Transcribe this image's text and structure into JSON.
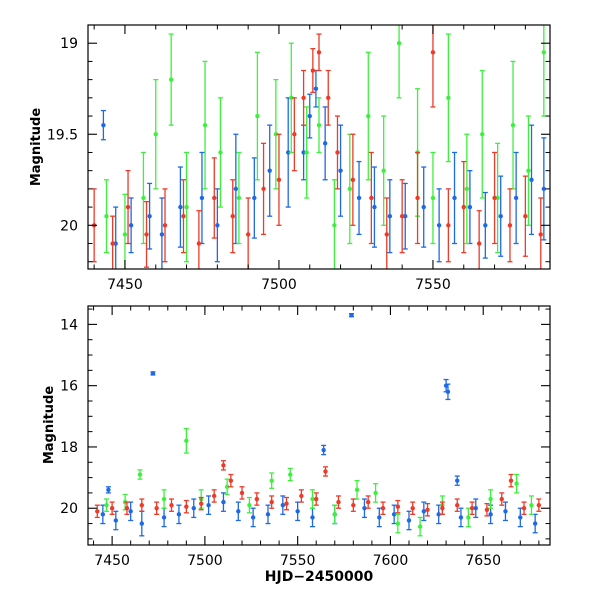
{
  "colors": {
    "blue": "#1e6ae6",
    "green": "#3ef03e",
    "red": "#ee3a28",
    "axis": "#000000"
  },
  "chart_data": [
    {
      "type": "scatter",
      "panel": "top",
      "title": "",
      "xlabel": "",
      "ylabel": "Magnitude",
      "xlim": [
        7438,
        7588
      ],
      "ylim": [
        20.24,
        18.9
      ],
      "y_inverted": true,
      "grid": false,
      "x_ticks": [
        7450,
        7500,
        7550
      ],
      "y_ticks": [
        19,
        19.5,
        20
      ],
      "x_tick_labels": [
        "7450",
        "7500",
        "7550"
      ],
      "y_tick_labels": [
        "19",
        "19.5",
        "20"
      ],
      "series": [
        {
          "color": "blue",
          "points": [
            [
              7443,
              19.45,
              0.08
            ],
            [
              7447,
              20.1,
              0.2
            ],
            [
              7452,
              20.0,
              0.15
            ],
            [
              7458,
              19.95,
              0.18
            ],
            [
              7462,
              20.05,
              0.2
            ],
            [
              7468,
              19.9,
              0.22
            ],
            [
              7475,
              19.85,
              0.25
            ],
            [
              7480,
              20.0,
              0.2
            ],
            [
              7486,
              19.8,
              0.3
            ],
            [
              7492,
              19.85,
              0.22
            ],
            [
              7497,
              19.7,
              0.25
            ],
            [
              7503,
              19.6,
              0.3
            ],
            [
              7508,
              19.6,
              0.15
            ],
            [
              7510,
              19.4,
              0.12
            ],
            [
              7512,
              19.25,
              0.1
            ],
            [
              7515,
              19.55,
              0.2
            ],
            [
              7520,
              19.7,
              0.25
            ],
            [
              7526,
              19.85,
              0.2
            ],
            [
              7531,
              19.9,
              0.22
            ],
            [
              7536,
              19.95,
              0.2
            ],
            [
              7541,
              19.95,
              0.18
            ],
            [
              7547,
              19.9,
              0.22
            ],
            [
              7552,
              20.0,
              0.2
            ],
            [
              7557,
              19.85,
              0.25
            ],
            [
              7562,
              19.9,
              0.2
            ],
            [
              7567,
              20.0,
              0.18
            ],
            [
              7572,
              19.95,
              0.22
            ],
            [
              7577,
              19.85,
              0.25
            ],
            [
              7582,
              19.75,
              0.3
            ],
            [
              7586,
              19.8,
              0.28
            ]
          ]
        },
        {
          "color": "green",
          "points": [
            [
              7444,
              19.95,
              0.2
            ],
            [
              7450,
              20.05,
              0.22
            ],
            [
              7456,
              19.85,
              0.25
            ],
            [
              7460,
              19.5,
              0.3
            ],
            [
              7465,
              19.2,
              0.25
            ],
            [
              7470,
              19.9,
              0.3
            ],
            [
              7476,
              19.45,
              0.35
            ],
            [
              7481,
              19.6,
              0.3
            ],
            [
              7487,
              19.85,
              0.25
            ],
            [
              7493,
              19.4,
              0.35
            ],
            [
              7499,
              19.5,
              0.3
            ],
            [
              7504,
              19.3,
              0.3
            ],
            [
              7509,
              19.6,
              0.25
            ],
            [
              7513,
              19.45,
              0.15
            ],
            [
              7518,
              20.0,
              0.25
            ],
            [
              7523,
              19.8,
              0.3
            ],
            [
              7529,
              19.4,
              0.35
            ],
            [
              7534,
              19.7,
              0.3
            ],
            [
              7539,
              19.0,
              0.3
            ],
            [
              7545,
              19.6,
              0.35
            ],
            [
              7550,
              19.85,
              0.25
            ],
            [
              7555,
              19.3,
              0.35
            ],
            [
              7561,
              19.8,
              0.3
            ],
            [
              7566,
              19.5,
              0.35
            ],
            [
              7571,
              19.85,
              0.3
            ],
            [
              7576,
              19.45,
              0.35
            ],
            [
              7581,
              19.7,
              0.3
            ],
            [
              7586,
              19.05,
              0.35
            ]
          ]
        },
        {
          "color": "red",
          "points": [
            [
              7440,
              20.0,
              0.2
            ],
            [
              7446,
              20.1,
              0.15
            ],
            [
              7451,
              19.9,
              0.2
            ],
            [
              7457,
              20.05,
              0.18
            ],
            [
              7463,
              20.0,
              0.2
            ],
            [
              7469,
              19.95,
              0.2
            ],
            [
              7474,
              20.1,
              0.18
            ],
            [
              7479,
              19.85,
              0.22
            ],
            [
              7485,
              19.95,
              0.2
            ],
            [
              7490,
              20.05,
              0.2
            ],
            [
              7495,
              19.8,
              0.25
            ],
            [
              7500,
              19.75,
              0.25
            ],
            [
              7505,
              19.5,
              0.2
            ],
            [
              7508,
              19.3,
              0.15
            ],
            [
              7511,
              19.15,
              0.12
            ],
            [
              7513,
              19.05,
              0.1
            ],
            [
              7516,
              19.3,
              0.15
            ],
            [
              7519,
              19.6,
              0.2
            ],
            [
              7524,
              19.75,
              0.25
            ],
            [
              7530,
              19.85,
              0.25
            ],
            [
              7535,
              20.05,
              0.2
            ],
            [
              7540,
              19.95,
              0.2
            ],
            [
              7545,
              19.85,
              0.25
            ],
            [
              7550,
              19.05,
              0.3
            ],
            [
              7555,
              20.0,
              0.2
            ],
            [
              7560,
              19.9,
              0.25
            ],
            [
              7565,
              20.1,
              0.18
            ],
            [
              7570,
              19.85,
              0.25
            ],
            [
              7575,
              20.0,
              0.2
            ],
            [
              7580,
              19.95,
              0.22
            ],
            [
              7585,
              20.05,
              0.2
            ]
          ]
        }
      ]
    },
    {
      "type": "scatter",
      "panel": "bottom",
      "title": "",
      "xlabel": "HJD−2450000",
      "ylabel": "Magnitude",
      "xlim": [
        7437,
        7686
      ],
      "ylim": [
        21.2,
        13.4
      ],
      "y_inverted": true,
      "grid": false,
      "x_ticks": [
        7450,
        7500,
        7550,
        7600,
        7650
      ],
      "y_ticks": [
        14,
        16,
        18,
        20
      ],
      "x_tick_labels": [
        "7450",
        "7500",
        "7550",
        "7600",
        "7650"
      ],
      "y_tick_labels": [
        "14",
        "16",
        "18",
        "20"
      ],
      "series": [
        {
          "color": "blue",
          "points": [
            [
              7445,
              20.2,
              0.3
            ],
            [
              7452,
              20.4,
              0.3
            ],
            [
              7460,
              20.1,
              0.3
            ],
            [
              7466,
              20.5,
              0.4
            ],
            [
              7472,
              15.6,
              0.05
            ],
            [
              7478,
              20.3,
              0.3
            ],
            [
              7486,
              20.2,
              0.3
            ],
            [
              7494,
              20.0,
              0.3
            ],
            [
              7502,
              19.9,
              0.3
            ],
            [
              7510,
              19.8,
              0.3
            ],
            [
              7518,
              20.1,
              0.3
            ],
            [
              7526,
              20.3,
              0.3
            ],
            [
              7534,
              20.2,
              0.3
            ],
            [
              7542,
              19.9,
              0.3
            ],
            [
              7550,
              20.1,
              0.3
            ],
            [
              7558,
              20.3,
              0.3
            ],
            [
              7564,
              18.1,
              0.15
            ],
            [
              7570,
              20.2,
              0.3
            ],
            [
              7579,
              13.7,
              0.05
            ],
            [
              7586,
              20.0,
              0.3
            ],
            [
              7594,
              20.3,
              0.3
            ],
            [
              7602,
              20.2,
              0.3
            ],
            [
              7610,
              20.4,
              0.3
            ],
            [
              7618,
              20.1,
              0.3
            ],
            [
              7626,
              20.2,
              0.3
            ],
            [
              7630,
              16.0,
              0.2
            ],
            [
              7631,
              16.2,
              0.25
            ],
            [
              7638,
              20.3,
              0.3
            ],
            [
              7646,
              20.0,
              0.3
            ],
            [
              7654,
              20.2,
              0.3
            ],
            [
              7662,
              20.1,
              0.3
            ],
            [
              7670,
              20.3,
              0.3
            ],
            [
              7678,
              20.5,
              0.3
            ],
            [
              7448,
              19.4,
              0.1
            ],
            [
              7636,
              19.1,
              0.15
            ]
          ]
        },
        {
          "color": "green",
          "points": [
            [
              7447,
              19.9,
              0.2
            ],
            [
              7457,
              19.8,
              0.25
            ],
            [
              7465,
              18.9,
              0.15
            ],
            [
              7478,
              19.7,
              0.3
            ],
            [
              7490,
              17.8,
              0.4
            ],
            [
              7498,
              19.7,
              0.3
            ],
            [
              7512,
              19.3,
              0.25
            ],
            [
              7524,
              19.9,
              0.25
            ],
            [
              7536,
              19.1,
              0.25
            ],
            [
              7546,
              18.9,
              0.2
            ],
            [
              7558,
              19.7,
              0.3
            ],
            [
              7570,
              20.2,
              0.3
            ],
            [
              7582,
              19.4,
              0.3
            ],
            [
              7592,
              19.5,
              0.3
            ],
            [
              7604,
              20.5,
              0.3
            ],
            [
              7616,
              20.6,
              0.3
            ],
            [
              7628,
              19.9,
              0.3
            ],
            [
              7642,
              20.3,
              0.3
            ],
            [
              7654,
              19.7,
              0.3
            ],
            [
              7668,
              19.2,
              0.3
            ],
            [
              7676,
              19.9,
              0.3
            ]
          ]
        },
        {
          "color": "red",
          "points": [
            [
              7442,
              20.1,
              0.2
            ],
            [
              7450,
              20.0,
              0.2
            ],
            [
              7458,
              20.0,
              0.2
            ],
            [
              7466,
              19.9,
              0.2
            ],
            [
              7474,
              20.0,
              0.2
            ],
            [
              7482,
              19.9,
              0.2
            ],
            [
              7490,
              19.95,
              0.2
            ],
            [
              7498,
              19.85,
              0.2
            ],
            [
              7505,
              19.6,
              0.2
            ],
            [
              7510,
              18.6,
              0.15
            ],
            [
              7514,
              19.1,
              0.2
            ],
            [
              7520,
              19.5,
              0.2
            ],
            [
              7528,
              19.7,
              0.2
            ],
            [
              7536,
              19.8,
              0.2
            ],
            [
              7544,
              19.85,
              0.2
            ],
            [
              7552,
              19.6,
              0.2
            ],
            [
              7560,
              19.7,
              0.2
            ],
            [
              7565,
              18.8,
              0.15
            ],
            [
              7572,
              19.8,
              0.2
            ],
            [
              7580,
              19.9,
              0.2
            ],
            [
              7588,
              19.8,
              0.2
            ],
            [
              7596,
              20.0,
              0.2
            ],
            [
              7604,
              19.95,
              0.2
            ],
            [
              7612,
              20.0,
              0.2
            ],
            [
              7620,
              20.05,
              0.2
            ],
            [
              7628,
              20.0,
              0.2
            ],
            [
              7636,
              19.9,
              0.2
            ],
            [
              7644,
              20.0,
              0.2
            ],
            [
              7652,
              20.05,
              0.2
            ],
            [
              7660,
              19.7,
              0.2
            ],
            [
              7665,
              19.1,
              0.2
            ],
            [
              7672,
              20.0,
              0.2
            ],
            [
              7680,
              19.9,
              0.2
            ]
          ]
        }
      ]
    }
  ]
}
